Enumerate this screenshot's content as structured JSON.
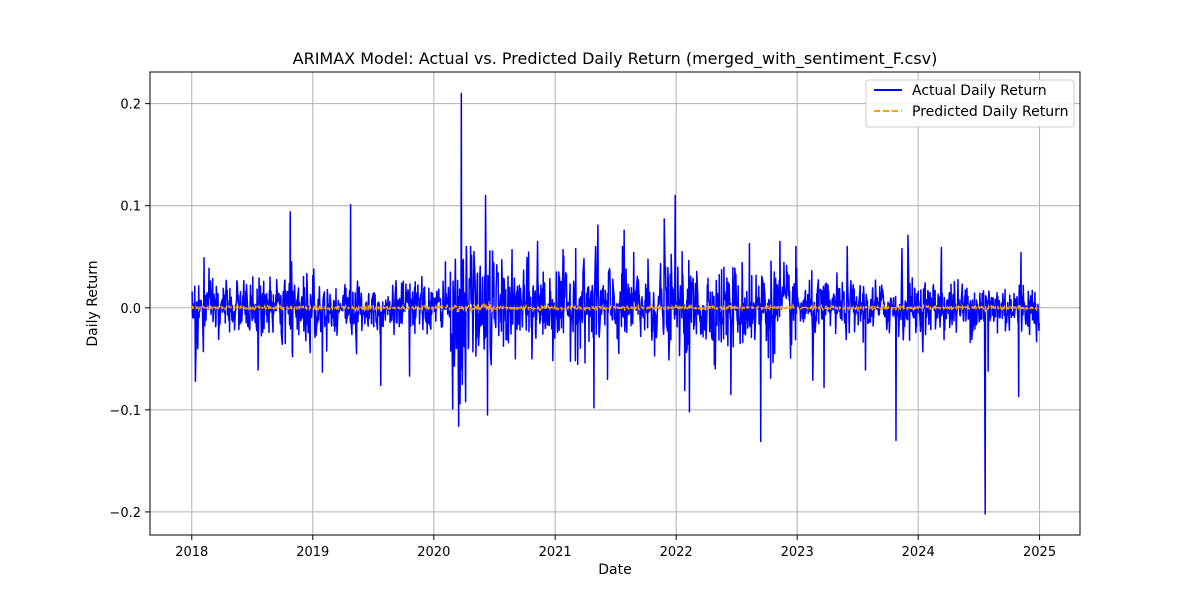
{
  "chart_data": {
    "type": "line",
    "title": "ARIMAX Model: Actual vs. Predicted Daily Return (merged_with_sentiment_F.csv)",
    "xlabel": "Date",
    "ylabel": "Daily Return",
    "xlim": [
      "2017-08-28",
      "2025-05-03"
    ],
    "ylim": [
      -0.2226,
      0.231
    ],
    "x_ticks": [
      "2018",
      "2019",
      "2020",
      "2021",
      "2022",
      "2023",
      "2024",
      "2025"
    ],
    "y_ticks": [
      -0.2,
      -0.1,
      0.0,
      0.1,
      0.2
    ],
    "y_tick_labels": [
      "−0.2",
      "−0.1",
      "0.0",
      "0.1",
      "0.2"
    ],
    "grid": true,
    "legend_position": "top-right",
    "x_range": [
      "2018-01-02",
      "2024-12-31"
    ],
    "series": [
      {
        "name": "Actual Daily Return",
        "color": "#0000ff",
        "style": "solid",
        "points": [
          [
            "2018-01-02",
            0.016
          ],
          [
            "2018-01-05",
            0.004
          ],
          [
            "2018-01-09",
            -0.005
          ],
          [
            "2018-01-12",
            -0.072
          ],
          [
            "2018-01-19",
            -0.04
          ],
          [
            "2018-02-05",
            -0.043
          ],
          [
            "2018-02-07",
            0.049
          ],
          [
            "2018-02-12",
            0.012
          ],
          [
            "2018-03-23",
            -0.031
          ],
          [
            "2018-04-15",
            0.027
          ],
          [
            "2018-07-20",
            -0.061
          ],
          [
            "2018-08-25",
            0.03
          ],
          [
            "2018-10-10",
            -0.035
          ],
          [
            "2018-10-25",
            0.094
          ],
          [
            "2018-11-01",
            -0.048
          ],
          [
            "2018-12-24",
            -0.044
          ],
          [
            "2019-01-04",
            0.038
          ],
          [
            "2019-01-30",
            -0.063
          ],
          [
            "2019-04-25",
            0.101
          ],
          [
            "2019-05-13",
            -0.045
          ],
          [
            "2019-07-25",
            -0.076
          ],
          [
            "2019-10-20",
            -0.067
          ],
          [
            "2020-02-05",
            0.045
          ],
          [
            "2020-02-27",
            -0.099
          ],
          [
            "2020-03-09",
            -0.04
          ],
          [
            "2020-03-16",
            -0.116
          ],
          [
            "2020-03-20",
            -0.094
          ],
          [
            "2020-03-24",
            0.21
          ],
          [
            "2020-03-27",
            -0.075
          ],
          [
            "2020-04-06",
            -0.092
          ],
          [
            "2020-04-09",
            0.05
          ],
          [
            "2020-04-14",
            -0.04
          ],
          [
            "2020-04-21",
            0.06
          ],
          [
            "2020-05-12",
            0.034
          ],
          [
            "2020-06-05",
            0.11
          ],
          [
            "2020-06-11",
            -0.105
          ],
          [
            "2020-06-30",
            0.044
          ],
          [
            "2020-09-03",
            -0.05
          ],
          [
            "2020-11-09",
            0.065
          ],
          [
            "2021-01-05",
            0.035
          ],
          [
            "2021-03-04",
            0.058
          ],
          [
            "2021-04-28",
            -0.098
          ],
          [
            "2021-05-10",
            0.081
          ],
          [
            "2021-06-08",
            -0.07
          ],
          [
            "2021-07-28",
            0.076
          ],
          [
            "2021-11-26",
            0.087
          ],
          [
            "2021-12-29",
            0.11
          ],
          [
            "2022-01-27",
            -0.081
          ],
          [
            "2022-02-10",
            -0.102
          ],
          [
            "2022-04-27",
            -0.055
          ],
          [
            "2022-06-15",
            -0.085
          ],
          [
            "2022-08-10",
            0.063
          ],
          [
            "2022-09-13",
            -0.131
          ],
          [
            "2022-10-13",
            -0.069
          ],
          [
            "2022-11-10",
            0.065
          ],
          [
            "2023-02-17",
            -0.071
          ],
          [
            "2023-03-23",
            -0.078
          ],
          [
            "2023-06-01",
            0.06
          ],
          [
            "2023-07-26",
            -0.061
          ],
          [
            "2023-10-26",
            -0.13
          ],
          [
            "2023-11-13",
            0.058
          ],
          [
            "2023-12-01",
            0.071
          ],
          [
            "2024-03-11",
            0.059
          ],
          [
            "2024-07-21",
            -0.202
          ],
          [
            "2024-07-30",
            -0.062
          ],
          [
            "2024-10-30",
            -0.087
          ],
          [
            "2024-11-06",
            0.054
          ],
          [
            "2024-12-31",
            -0.015
          ]
        ]
      },
      {
        "name": "Predicted Daily Return",
        "color": "#ffa500",
        "style": "dashed",
        "points": [
          [
            "2018-01-02",
            -0.001
          ],
          [
            "2020-03-16",
            -0.004
          ],
          [
            "2020-03-25",
            0.002
          ],
          [
            "2020-06-05",
            0.003
          ],
          [
            "2024-07-21",
            -0.003
          ],
          [
            "2024-12-31",
            0.0
          ]
        ]
      }
    ]
  }
}
